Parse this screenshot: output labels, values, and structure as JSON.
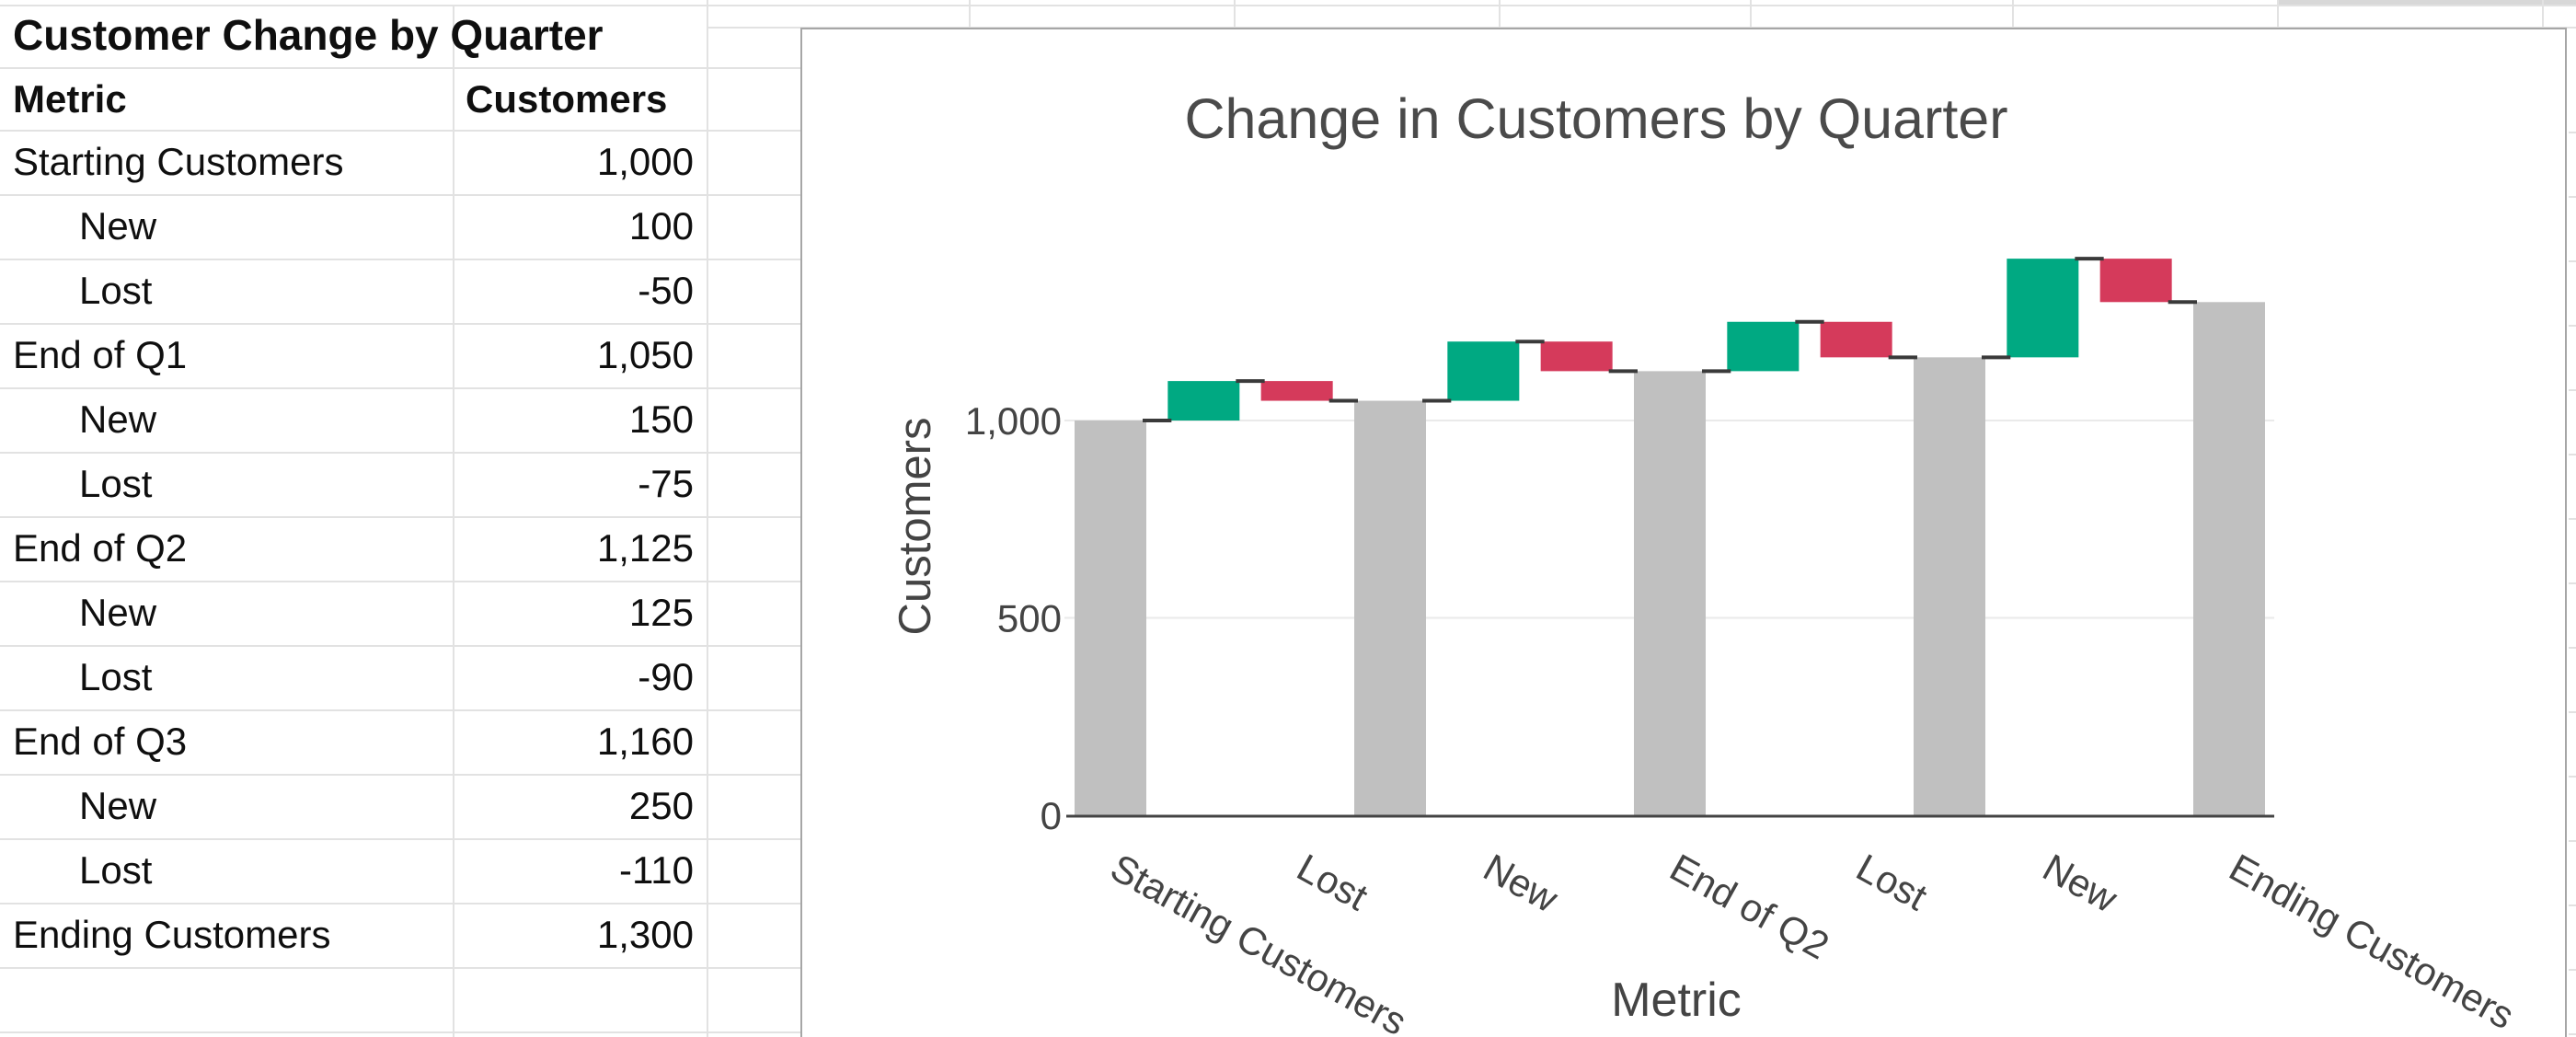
{
  "sheet": {
    "table": {
      "title": "Customer Change by Quarter",
      "columns": [
        "Metric",
        "Customers"
      ],
      "rows": [
        {
          "metric": "Starting Customers",
          "value": "1,000",
          "indent": false
        },
        {
          "metric": "New",
          "value": "100",
          "indent": true
        },
        {
          "metric": "Lost",
          "value": "-50",
          "indent": true
        },
        {
          "metric": "End of Q1",
          "value": "1,050",
          "indent": false
        },
        {
          "metric": "New",
          "value": "150",
          "indent": true
        },
        {
          "metric": "Lost",
          "value": "-75",
          "indent": true
        },
        {
          "metric": "End of Q2",
          "value": "1,125",
          "indent": false
        },
        {
          "metric": "New",
          "value": "125",
          "indent": true
        },
        {
          "metric": "Lost",
          "value": "-90",
          "indent": true
        },
        {
          "metric": "End of Q3",
          "value": "1,160",
          "indent": false
        },
        {
          "metric": "New",
          "value": "250",
          "indent": true
        },
        {
          "metric": "Lost",
          "value": "-110",
          "indent": true
        },
        {
          "metric": "Ending Customers",
          "value": "1,300",
          "indent": false
        }
      ]
    }
  },
  "chart_data": {
    "type": "bar",
    "subtype": "waterfall",
    "title": "Change in Customers by Quarter",
    "xlabel": "Metric",
    "ylabel": "Customers",
    "categories": [
      "Starting Customers",
      "New",
      "Lost",
      "End of Q1",
      "New",
      "Lost",
      "End of Q2",
      "New",
      "Lost",
      "End of Q3",
      "New",
      "Lost",
      "Ending Customers"
    ],
    "steps": [
      {
        "label": "Starting Customers",
        "measure": "absolute",
        "value": 1000
      },
      {
        "label": "New",
        "measure": "relative",
        "value": 100
      },
      {
        "label": "Lost",
        "measure": "relative",
        "value": -50
      },
      {
        "label": "End of Q1",
        "measure": "total",
        "value": 1050
      },
      {
        "label": "New",
        "measure": "relative",
        "value": 150
      },
      {
        "label": "Lost",
        "measure": "relative",
        "value": -75
      },
      {
        "label": "End of Q2",
        "measure": "total",
        "value": 1125
      },
      {
        "label": "New",
        "measure": "relative",
        "value": 125
      },
      {
        "label": "Lost",
        "measure": "relative",
        "value": -90
      },
      {
        "label": "End of Q3",
        "measure": "total",
        "value": 1160
      },
      {
        "label": "New",
        "measure": "relative",
        "value": 250
      },
      {
        "label": "Lost",
        "measure": "relative",
        "value": -110
      },
      {
        "label": "Ending Customers",
        "measure": "total",
        "value": 1300
      }
    ],
    "visible_x_tick_indices": [
      0,
      2,
      4,
      6,
      8,
      10,
      12
    ],
    "visible_x_tick_labels": [
      "Starting Customers",
      "Lost",
      "New",
      "End of Q2",
      "Lost",
      "New",
      "Ending Customers"
    ],
    "yticks": {
      "values": [
        0,
        500,
        1000
      ],
      "labels": [
        "0",
        "500",
        "1,000"
      ]
    },
    "ylim": [
      0,
      1500
    ],
    "grid": true,
    "legend": "none",
    "colors": {
      "increasing": "#00A982",
      "decreasing": "#D53A5B",
      "total": "#C0C0C0",
      "connector": "#3A3A3A",
      "axis_text": "#444444",
      "title_text": "#4A4A4A",
      "gridline": "#EAEAEA",
      "axis_line": "#444444"
    }
  }
}
